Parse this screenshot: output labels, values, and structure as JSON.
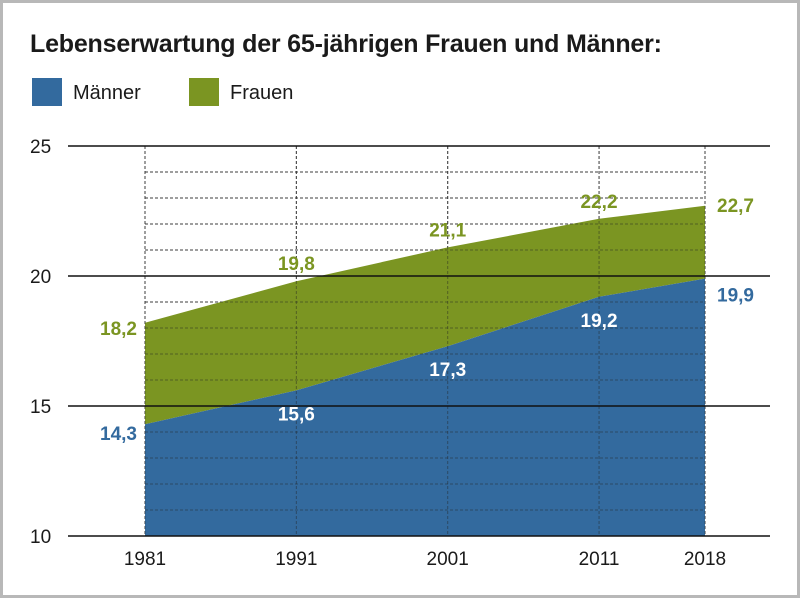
{
  "chart_data": {
    "type": "area",
    "title": "Lebenserwartung der 65-jährigen Frauen und Männer:",
    "x": [
      1981,
      1991,
      2001,
      2011,
      2018
    ],
    "x_tick_labels": [
      "1981",
      "1991",
      "2001",
      "2011",
      "2018"
    ],
    "y_tick_labels": [
      "10",
      "15",
      "20",
      "25"
    ],
    "ylim": [
      10,
      25
    ],
    "series": [
      {
        "name": "Männer",
        "color": "#336a9e",
        "values": [
          14.3,
          15.6,
          17.3,
          19.2,
          19.9
        ],
        "value_labels": [
          "14,3",
          "15,6",
          "17,3",
          "19,2",
          "19,9"
        ]
      },
      {
        "name": "Frauen",
        "color": "#7b9522",
        "values": [
          18.2,
          19.8,
          21.1,
          22.2,
          22.7
        ],
        "value_labels": [
          "18,2",
          "19,8",
          "21,1",
          "22,2",
          "22,7"
        ]
      }
    ],
    "grid": true,
    "legend_position": "top-left"
  }
}
